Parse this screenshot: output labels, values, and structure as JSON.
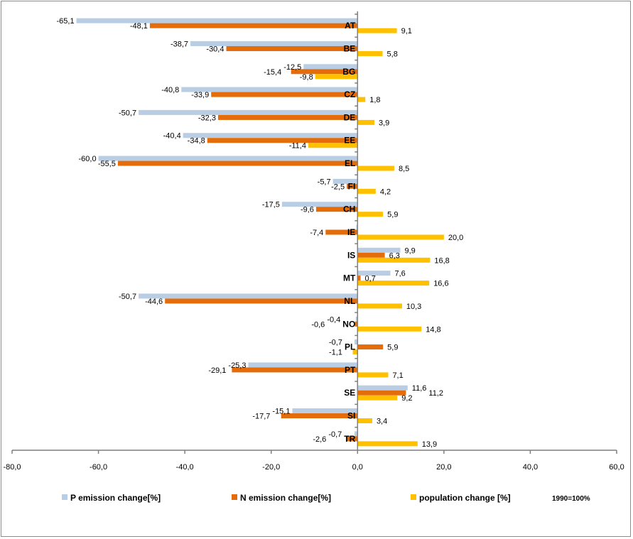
{
  "chart_data": {
    "type": "bar",
    "orientation": "horizontal",
    "title": "",
    "xlabel": "",
    "ylabel": "",
    "xlim": [
      -80,
      60
    ],
    "x_ticks": [
      "-80,0",
      "-60,0",
      "-40,0",
      "-20,0",
      "0,0",
      "20,0",
      "40,0",
      "60,0"
    ],
    "x_tick_values": [
      -80,
      -60,
      -40,
      -20,
      0,
      20,
      40,
      60
    ],
    "grid": false,
    "legend_position": "bottom",
    "categories": [
      "AT",
      "BE",
      "BG",
      "CZ",
      "DE",
      "EE",
      "EL",
      "FI",
      "CH",
      "IE",
      "IS",
      "MT",
      "NL",
      "NO",
      "PL",
      "PT",
      "SE",
      "SI",
      "TR"
    ],
    "series": [
      {
        "name": "P emission change[%]",
        "color": "#b9cde5",
        "values": [
          -65.1,
          -38.7,
          -12.5,
          -40.8,
          -50.7,
          -40.4,
          -60.0,
          -5.7,
          -17.5,
          -0.3,
          9.9,
          7.6,
          -50.7,
          -0.4,
          -0.7,
          -25.3,
          11.6,
          -15.1,
          -0.7
        ],
        "labels": [
          "-65,1",
          "-38,7",
          "-12,5",
          "-40,8",
          "-50,7",
          "-40,4",
          "-60,0",
          "-5,7",
          "-17,5",
          "",
          "9,9",
          "7,6",
          "-50,7",
          "-0,4",
          "-0,7",
          "-25,3",
          "11,6",
          "-15,1",
          "-0,7"
        ]
      },
      {
        "name": "N emission change[%]",
        "color": "#e46c0a",
        "values": [
          -48.1,
          -30.4,
          -15.4,
          -33.9,
          -32.3,
          -34.8,
          -55.5,
          -2.5,
          -9.6,
          -7.4,
          6.3,
          0.7,
          -44.6,
          -0.6,
          5.9,
          -29.1,
          11.2,
          -17.7,
          -2.6
        ],
        "labels": [
          "-48,1",
          "-30,4",
          "-15,4",
          "-33,9",
          "-32,3",
          "-34,8",
          "-55,5",
          "-2,5",
          "-9,6",
          "-7,4",
          "6,3",
          "0,7",
          "-44,6",
          "-0,6",
          "5,9",
          "-29,1",
          "11,2",
          "-17,7",
          "-2,6"
        ]
      },
      {
        "name": "population change [%]",
        "color": "#ffc000",
        "values": [
          9.1,
          5.8,
          -9.8,
          1.8,
          3.9,
          -11.4,
          8.5,
          4.2,
          5.9,
          20.0,
          16.8,
          16.6,
          10.3,
          14.8,
          -1.1,
          7.1,
          9.2,
          3.4,
          13.9
        ],
        "labels": [
          "9,1",
          "5,8",
          "-9,8",
          "1,8",
          "3,9",
          "-11,4",
          "8,5",
          "4,2",
          "5,9",
          "20,0",
          "16,8",
          "16,6",
          "10,3",
          "14,8",
          "-1,1",
          "7,1",
          "9,2",
          "3,4",
          "13,9"
        ]
      }
    ],
    "annotation": "1990=100%"
  }
}
